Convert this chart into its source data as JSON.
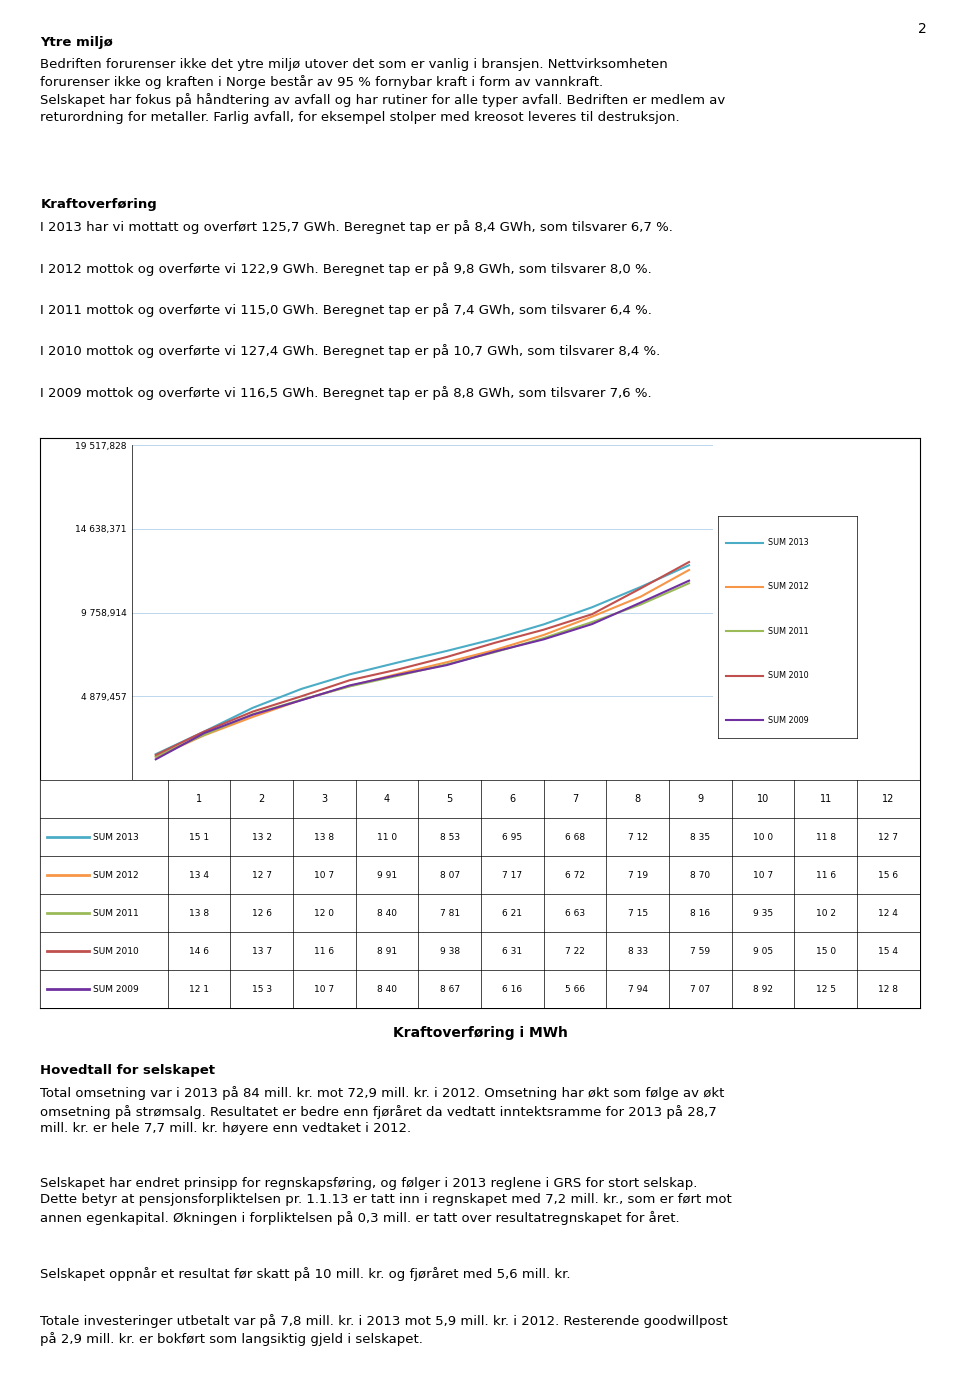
{
  "page_number": "2",
  "text_blocks": [
    {
      "heading": "Ytre miljø",
      "body": "Bedriften forurenser ikke det ytre miljø utover det som er vanlig i bransjen. Nettvirksomheten\nforurenser ikke og kraften i Norge består av 95 % fornybar kraft i form av vannkraft.\nSelskapet har fokus på håndtering av avfall og har rutiner for alle typer avfall. Bedriften er medlem av\nreturordning for metaller. Farlig avfall, for eksempel stolper med kreosot leveres til destruksjon."
    },
    {
      "heading": "Kraftoverføring",
      "lines": [
        "I 2013 har vi mottatt og overført 125,7 GWh. Beregnet tap er på 8,4 GWh, som tilsvarer 6,7 %.",
        "I 2012 mottok og overførte vi 122,9 GWh. Beregnet tap er på 9,8 GWh, som tilsvarer 8,0 %.",
        "I 2011 mottok og overførte vi 115,0 GWh. Beregnet tap er på 7,4 GWh, som tilsvarer 6,4 %.",
        "I 2010 mottok og overførte vi 127,4 GWh. Beregnet tap er på 10,7 GWh, som tilsvarer 8,4 %.",
        "I 2009 mottok og overførte vi 116,5 GWh. Beregnet tap er på 8,8 GWh, som tilsvarer 7,6 %."
      ]
    },
    {
      "heading": "Hovedtall for selskapet",
      "lines": [
        "Total omsetning var i 2013 på 84 mill. kr. mot 72,9 mill. kr. i 2012. Omsetning har økt som følge av økt\nomsetning på strømsalg. Resultatet er bedre enn fjøråret da vedtatt inntektsramme for 2013 på 28,7\nmill. kr. er hele 7,7 mill. kr. høyere enn vedtaket i 2012.",
        "Selskapet har endret prinsipp for regnskapsføring, og følger i 2013 reglene i GRS for stort selskap.\nDette betyr at pensjonsforpliktelsen pr. 1.1.13 er tatt inn i regnskapet med 7,2 mill. kr., som er ført mot\nannen egenkapital. Økningen i forpliktelsen på 0,3 mill. er tatt over resultatregnskapet for året.",
        "Selskapet oppnår et resultat før skatt på 10 mill. kr. og fjøråret med 5,6 mill. kr.",
        "Totale investeringer utbetalt var på 7,8 mill. kr. i 2013 mot 5,9 mill. kr. i 2012. Resterende goodwillpost\npå 2,9 mill. kr. er bokført som langsiktig gjeld i selskapet."
      ]
    }
  ],
  "chart": {
    "y_tick_vals": [
      0,
      4879.457,
      9758.914,
      14638.371,
      19517.828
    ],
    "y_tick_labels": [
      "-",
      "4 879,457",
      "9 758,914",
      "14 638,371",
      "19 517,828"
    ],
    "x_labels": [
      "1",
      "2",
      "3",
      "4",
      "5",
      "6",
      "7",
      "8",
      "9",
      "10",
      "11",
      "12"
    ],
    "series": [
      {
        "name": "SUM 2013",
        "color": "#4BACC6",
        "monthly": [
          1510,
          1320,
          1380,
          1100,
          853,
          695,
          668,
          712,
          835,
          1000,
          1180,
          1270
        ]
      },
      {
        "name": "SUM 2012",
        "color": "#F79646",
        "monthly": [
          1340,
          1270,
          1070,
          991,
          807,
          717,
          672,
          719,
          870,
          1070,
          1160,
          1560
        ]
      },
      {
        "name": "SUM 2011",
        "color": "#9BBB59",
        "monthly": [
          1380,
          1260,
          1200,
          840,
          781,
          621,
          663,
          715,
          816,
          935,
          1020,
          1240
        ]
      },
      {
        "name": "SUM 2010",
        "color": "#C0504D",
        "monthly": [
          1460,
          1370,
          1160,
          891,
          938,
          631,
          722,
          833,
          759,
          905,
          1500,
          1540
        ]
      },
      {
        "name": "SUM 2009",
        "color": "#7030A0",
        "monthly": [
          1210,
          1530,
          1070,
          840,
          867,
          616,
          566,
          794,
          707,
          892,
          1250,
          1280
        ]
      }
    ],
    "table_data": [
      [
        "SUM 2013",
        "15 1",
        "13 2",
        "13 8",
        "11 0",
        "8 53",
        "6 95",
        "6 68",
        "7 12",
        "8 35",
        "10 0",
        "11 8",
        "12 7"
      ],
      [
        "SUM 2012",
        "13 4",
        "12 7",
        "10 7",
        "9 91",
        "8 07",
        "7 17",
        "6 72",
        "7 19",
        "8 70",
        "10 7",
        "11 6",
        "15 6"
      ],
      [
        "SUM 2011",
        "13 8",
        "12 6",
        "12 0",
        "8 40",
        "7 81",
        "6 21",
        "6 63",
        "7 15",
        "8 16",
        "9 35",
        "10 2",
        "12 4"
      ],
      [
        "SUM 2010",
        "14 6",
        "13 7",
        "11 6",
        "8 91",
        "9 38",
        "6 31",
        "7 22",
        "8 33",
        "7 59",
        "9 05",
        "15 0",
        "15 4"
      ],
      [
        "SUM 2009",
        "12 1",
        "15 3",
        "10 7",
        "8 40",
        "8 67",
        "6 16",
        "5 66",
        "7 94",
        "7 07",
        "8 92",
        "12 5",
        "12 8"
      ]
    ],
    "series_colors": [
      "#4BACC6",
      "#F79646",
      "#9BBB59",
      "#C0504D",
      "#7030A0"
    ],
    "chart_title": "Kraftoverføring i MWh",
    "grid_color": "#BDD7EE"
  },
  "bg_color": "#FFFFFF",
  "text_color": "#000000",
  "fontsize_body": 9.5,
  "fontsize_heading": 9.5
}
